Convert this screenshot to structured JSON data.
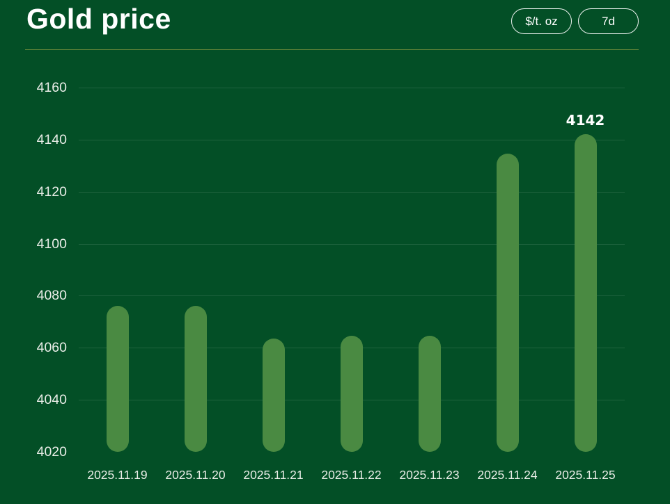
{
  "header": {
    "title": "Gold price",
    "unit_button": "$/t. oz",
    "range_button": "7d"
  },
  "colors": {
    "background": "#034f26",
    "bar": "#4a8a42",
    "divider": "#6f8c3b",
    "gridline": "rgba(225,243,225,0.13)",
    "axis_text": "#e9ede7",
    "title_text": "#ffffff",
    "button_border": "rgba(255,255,255,0.92)",
    "data_label_text": "#ffffff"
  },
  "chart_data": {
    "type": "bar",
    "title": "Gold price",
    "unit": "$/t. oz",
    "time_range": "7d",
    "categories": [
      "2025.11.19",
      "2025.11.20",
      "2025.11.21",
      "2025.11.22",
      "2025.11.23",
      "2025.11.24",
      "2025.11.25"
    ],
    "values": [
      4076,
      4076,
      4063.5,
      4064.5,
      4064.5,
      4134.5,
      4142
    ],
    "data_labels": [
      null,
      null,
      null,
      null,
      null,
      null,
      "4142"
    ],
    "yticks": [
      4160,
      4140,
      4120,
      4100,
      4080,
      4060,
      4040,
      4020
    ],
    "ylim": [
      4020,
      4160
    ],
    "grid": true,
    "legend": false,
    "xlabel": "",
    "ylabel": ""
  }
}
